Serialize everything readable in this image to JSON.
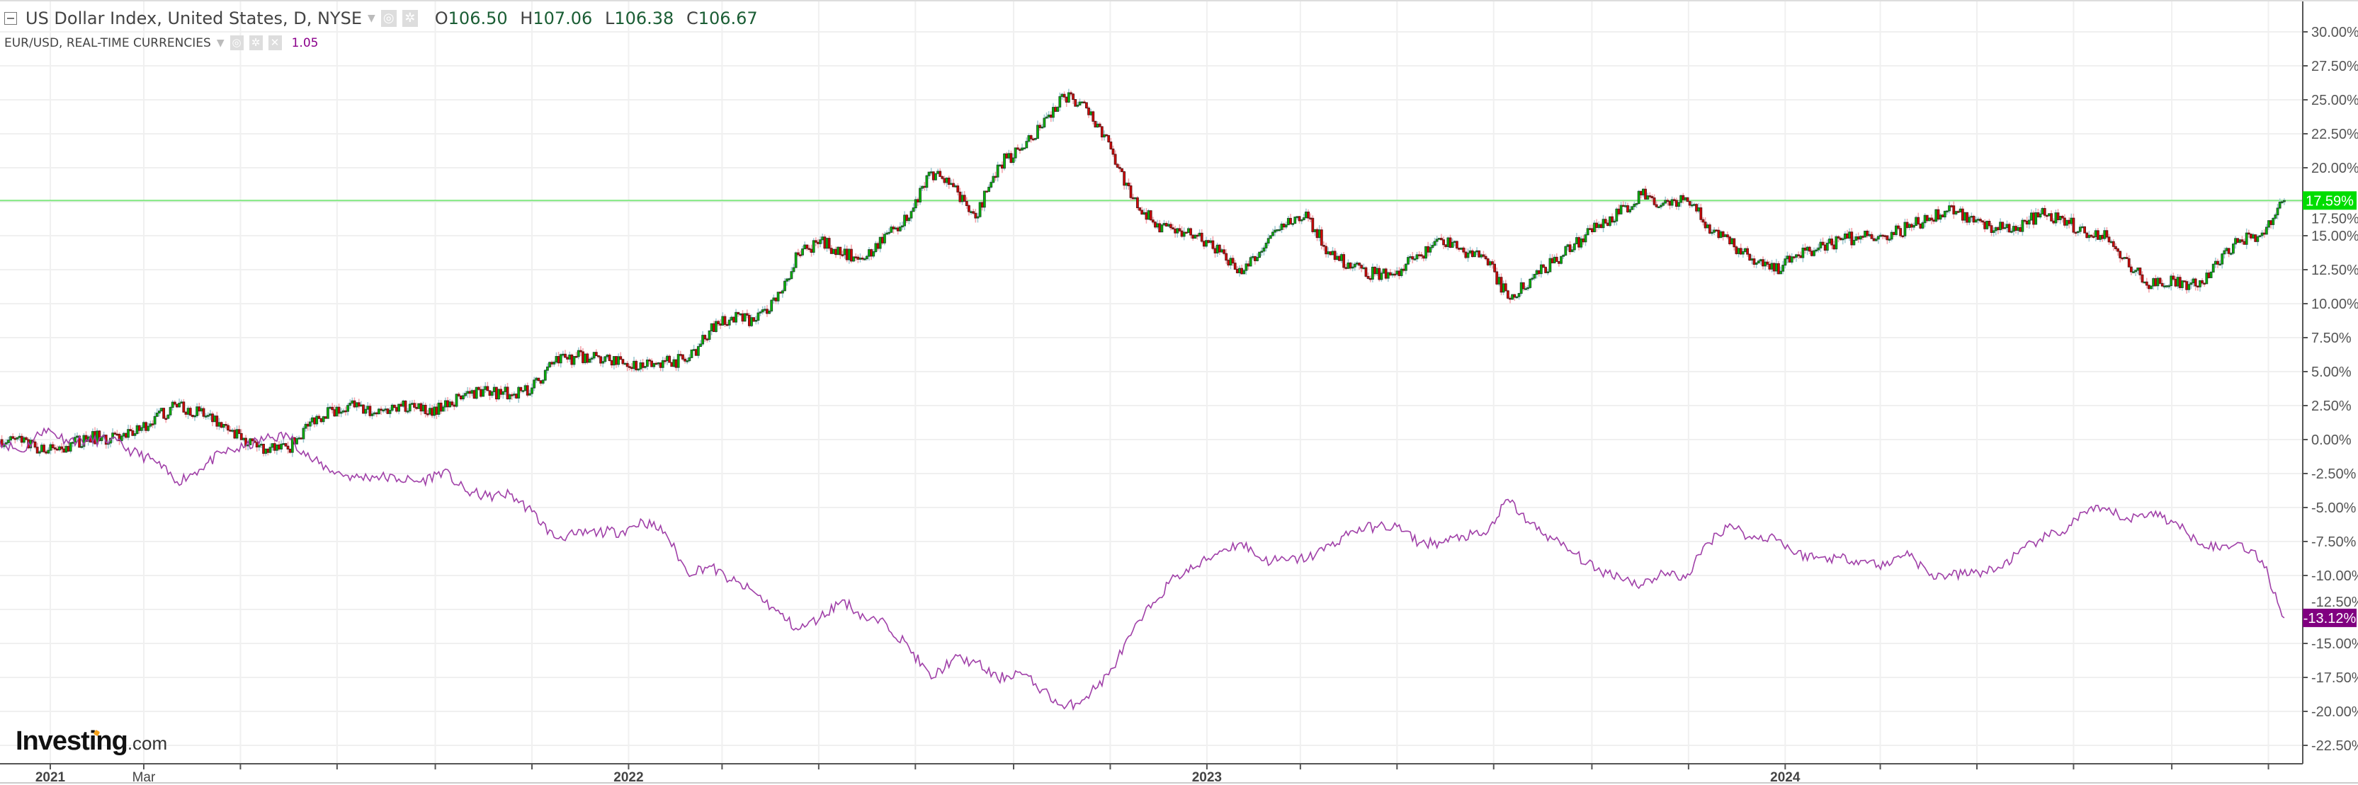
{
  "legend": {
    "main_title": "US Dollar Index, United States, D, NYSE",
    "open_label": "O",
    "open": "106.50",
    "high_label": "H",
    "high": "107.06",
    "low_label": "L",
    "low": "106.38",
    "close_label": "C",
    "close": "106.67",
    "compare_title": "EUR/USD, REAL-TIME CURRENCIES",
    "compare_value": "1.05",
    "icons": [
      "collapse-icon",
      "caret-down-icon",
      "eye-icon",
      "gear-icon",
      "close-icon"
    ]
  },
  "logo": {
    "text": "Investing",
    "suffix": ".com"
  },
  "colors": {
    "up": "#00c000",
    "up_border": "#1f4f2a",
    "down": "#e00000",
    "down_border": "#5a1a1a",
    "compare_line": "#a040a8",
    "last_price_bg": "#00dd00",
    "compare_label_bg": "#800080",
    "price_line": "#80e880"
  },
  "chart_data": {
    "type": "candlestick",
    "ylabel_format": "percent",
    "ylim": [
      -25,
      32
    ],
    "yticks": [
      "30.00%",
      "27.50%",
      "25.00%",
      "22.50%",
      "20.00%",
      "17.50%",
      "15.00%",
      "12.50%",
      "10.00%",
      "7.50%",
      "5.00%",
      "2.50%",
      "0.00%",
      "-2.50%",
      "-5.00%",
      "-7.50%",
      "-10.00%",
      "-12.50%",
      "-15.00%",
      "-17.50%",
      "-20.00%",
      "-22.50%"
    ],
    "ytick_values": [
      30,
      27.5,
      25,
      22.5,
      20,
      17.5,
      15,
      12.5,
      10,
      7.5,
      5,
      2.5,
      0,
      -2.5,
      -5,
      -7.5,
      -10,
      -12.5,
      -15,
      -17.5,
      -20,
      -22.5
    ],
    "xticks": [
      {
        "date": "2021-01-01",
        "label": "2021"
      },
      {
        "date": "2021-03-01",
        "label": "Mar"
      },
      {
        "date": "2021-05-01",
        "label": ""
      },
      {
        "date": "2021-07-01",
        "label": ""
      },
      {
        "date": "2021-09-01",
        "label": ""
      },
      {
        "date": "2021-11-01",
        "label": ""
      },
      {
        "date": "2022-01-01",
        "label": "2022"
      },
      {
        "date": "2022-03-01",
        "label": ""
      },
      {
        "date": "2022-05-01",
        "label": ""
      },
      {
        "date": "2022-07-01",
        "label": ""
      },
      {
        "date": "2022-09-01",
        "label": ""
      },
      {
        "date": "2022-11-01",
        "label": ""
      },
      {
        "date": "2023-01-01",
        "label": "2023"
      },
      {
        "date": "2023-03-01",
        "label": ""
      },
      {
        "date": "2023-05-01",
        "label": ""
      },
      {
        "date": "2023-07-01",
        "label": ""
      },
      {
        "date": "2023-09-01",
        "label": ""
      },
      {
        "date": "2023-11-01",
        "label": ""
      },
      {
        "date": "2024-01-01",
        "label": "2024"
      },
      {
        "date": "2024-03-01",
        "label": ""
      },
      {
        "date": "2024-05-01",
        "label": ""
      },
      {
        "date": "2024-07-01",
        "label": ""
      },
      {
        "date": "2024-09-01",
        "label": ""
      },
      {
        "date": "2024-11-01",
        "label": ""
      }
    ],
    "dates": [
      "2020-11-30",
      "2020-12-14",
      "2020-12-28",
      "2021-01-11",
      "2021-01-25",
      "2021-02-08",
      "2021-02-22",
      "2021-03-08",
      "2021-03-22",
      "2021-04-05",
      "2021-04-19",
      "2021-05-03",
      "2021-05-17",
      "2021-05-31",
      "2021-06-14",
      "2021-06-28",
      "2021-07-12",
      "2021-07-26",
      "2021-08-09",
      "2021-08-23",
      "2021-09-06",
      "2021-09-20",
      "2021-10-04",
      "2021-10-18",
      "2021-11-01",
      "2021-11-15",
      "2021-11-29",
      "2021-12-13",
      "2021-12-27",
      "2022-01-10",
      "2022-01-24",
      "2022-02-07",
      "2022-02-21",
      "2022-03-07",
      "2022-03-21",
      "2022-04-04",
      "2022-04-18",
      "2022-05-02",
      "2022-05-16",
      "2022-05-30",
      "2022-06-13",
      "2022-06-27",
      "2022-07-11",
      "2022-07-25",
      "2022-08-08",
      "2022-08-22",
      "2022-09-05",
      "2022-09-19",
      "2022-10-03",
      "2022-10-17",
      "2022-10-31",
      "2022-11-14",
      "2022-11-28",
      "2022-12-12",
      "2022-12-26",
      "2023-01-09",
      "2023-01-23",
      "2023-02-06",
      "2023-02-20",
      "2023-03-06",
      "2023-03-20",
      "2023-04-03",
      "2023-04-17",
      "2023-05-01",
      "2023-05-15",
      "2023-05-29",
      "2023-06-12",
      "2023-06-26",
      "2023-07-10",
      "2023-07-24",
      "2023-08-07",
      "2023-08-21",
      "2023-09-04",
      "2023-09-18",
      "2023-10-02",
      "2023-10-16",
      "2023-10-30",
      "2023-11-13",
      "2023-11-27",
      "2023-12-11",
      "2023-12-25",
      "2024-01-08",
      "2024-01-22",
      "2024-02-05",
      "2024-02-19",
      "2024-03-04",
      "2024-03-18",
      "2024-04-01",
      "2024-04-15",
      "2024-04-29",
      "2024-05-13",
      "2024-05-27",
      "2024-06-10",
      "2024-06-24",
      "2024-07-08",
      "2024-07-22",
      "2024-08-05",
      "2024-08-19",
      "2024-09-02",
      "2024-09-16",
      "2024-09-30",
      "2024-10-14",
      "2024-10-28",
      "2024-11-11"
    ],
    "series": [
      {
        "name": "US Dollar Index, United States, D, NYSE",
        "style": "candles",
        "last_label": "17.59%",
        "values": [
          0,
          -0.2,
          -0.9,
          -0.5,
          0.2,
          0.1,
          0.3,
          1.7,
          2.4,
          2.1,
          0.9,
          0.1,
          -0.7,
          -0.7,
          1.3,
          2.2,
          2.4,
          1.9,
          2.6,
          2.1,
          2.4,
          3.4,
          3.6,
          3.3,
          3.8,
          5.7,
          6.1,
          6.1,
          5.9,
          5.3,
          5.8,
          5.8,
          8.0,
          9.0,
          8.7,
          10.2,
          13.6,
          14.7,
          13.6,
          13.3,
          15.2,
          16.3,
          19.7,
          18.6,
          16.3,
          20.2,
          21.3,
          23.0,
          25.2,
          24.4,
          21.9,
          17.8,
          16.0,
          15.2,
          15.0,
          13.8,
          12.2,
          14.1,
          15.8,
          16.3,
          13.6,
          12.7,
          12.2,
          12.4,
          13.6,
          14.7,
          13.8,
          13.3,
          10.4,
          11.8,
          13.0,
          14.4,
          15.6,
          16.6,
          18.0,
          17.4,
          17.8,
          15.8,
          14.4,
          13.3,
          12.4,
          13.6,
          14.1,
          14.7,
          14.9,
          15.0,
          15.6,
          16.3,
          17.2,
          16.0,
          15.6,
          15.6,
          16.6,
          16.3,
          15.2,
          14.9,
          12.7,
          11.3,
          11.8,
          11.3,
          12.9,
          14.7,
          15.2,
          17.59
        ]
      },
      {
        "name": "EUR/USD, REAL-TIME CURRENCIES",
        "style": "line",
        "last_label": "-13.12%",
        "values": [
          -0.1,
          -0.9,
          0.8,
          0,
          -0.1,
          0,
          -0.9,
          -1.6,
          -3.1,
          -2.2,
          -1.0,
          -0.6,
          0.1,
          0.3,
          -1.4,
          -2.3,
          -2.8,
          -2.7,
          -2.9,
          -3.1,
          -2.3,
          -3.8,
          -4.2,
          -4.0,
          -5.3,
          -7.2,
          -7.0,
          -6.8,
          -6.8,
          -6.0,
          -6.8,
          -9.8,
          -9.3,
          -10.4,
          -11.2,
          -12.6,
          -14.0,
          -13.1,
          -11.8,
          -13.1,
          -13.6,
          -15.3,
          -17.6,
          -16.1,
          -16.4,
          -17.6,
          -17.1,
          -18.4,
          -19.8,
          -18.9,
          -17.3,
          -14.4,
          -12.0,
          -10.1,
          -9.3,
          -8.2,
          -7.6,
          -8.9,
          -8.9,
          -8.7,
          -7.8,
          -6.7,
          -6.4,
          -6.4,
          -7.6,
          -7.6,
          -7.1,
          -7.0,
          -4.4,
          -6.2,
          -7.3,
          -8.4,
          -9.6,
          -10.0,
          -10.7,
          -9.8,
          -10.2,
          -7.6,
          -6.2,
          -7.3,
          -7.1,
          -8.4,
          -8.7,
          -8.7,
          -8.9,
          -9.3,
          -8.2,
          -10.0,
          -10.0,
          -9.8,
          -9.6,
          -8.4,
          -7.3,
          -6.8,
          -5.3,
          -5.2,
          -5.9,
          -5.3,
          -6.1,
          -7.3,
          -8.0,
          -7.6,
          -8.9,
          -13.12
        ]
      }
    ],
    "grid": true
  }
}
